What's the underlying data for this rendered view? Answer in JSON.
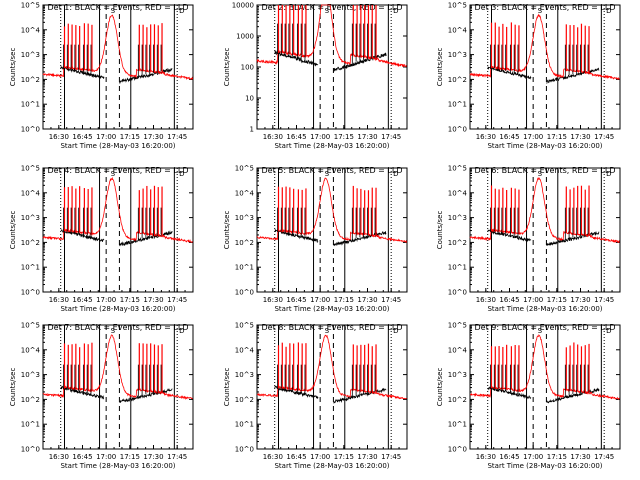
{
  "chart_data": [
    {
      "type": "line",
      "title": "Det 1: BLACK = Events, RED = LLD",
      "ylabel": "Counts/sec",
      "xlabel": "Start Time (28-May-03 16:20:00)",
      "x_ticks": [
        "16:30",
        "16:45",
        "17:00",
        "17:15",
        "17:30",
        "17:45"
      ],
      "y_ticks": [
        "10^0",
        "10^1",
        "10^2",
        "10^3",
        "10^4",
        "10^5"
      ],
      "ylim": [
        1,
        100000
      ],
      "markers": [
        "S",
        "D"
      ],
      "series": [
        {
          "name": "BLACK = Events",
          "color": "#000000"
        },
        {
          "name": "RED = LLD",
          "color": "#ff0000"
        }
      ]
    },
    {
      "type": "line",
      "title": "Det 2: BLACK = Events, RED = LLD",
      "ylabel": "Counts/sec",
      "xlabel": "Start Time (28-May-03 16:20:00)",
      "x_ticks": [
        "16:30",
        "16:45",
        "17:00",
        "17:15",
        "17:30",
        "17:45"
      ],
      "y_ticks": [
        "1",
        "10",
        "100",
        "1000",
        "10000"
      ],
      "ylim": [
        1,
        10000
      ],
      "markers": [
        "S",
        "D"
      ],
      "series": [
        {
          "name": "BLACK = Events",
          "color": "#000000"
        },
        {
          "name": "RED = LLD",
          "color": "#ff0000"
        }
      ]
    },
    {
      "type": "line",
      "title": "Det 3: BLACK = Events, RED = LLD",
      "ylabel": "Counts/sec",
      "xlabel": "Start Time (28-May-03 16:20:00)",
      "x_ticks": [
        "16:30",
        "16:45",
        "17:00",
        "17:15",
        "17:30",
        "17:45"
      ],
      "y_ticks": [
        "10^0",
        "10^1",
        "10^2",
        "10^3",
        "10^4",
        "10^5"
      ],
      "ylim": [
        1,
        100000
      ],
      "markers": [
        "S",
        "D"
      ],
      "series": [
        {
          "name": "BLACK = Events",
          "color": "#000000"
        },
        {
          "name": "RED = LLD",
          "color": "#ff0000"
        }
      ]
    },
    {
      "type": "line",
      "title": "Det 4: BLACK = Events, RED = LLD",
      "ylabel": "Counts/sec",
      "xlabel": "Start Time (28-May-03 16:20:00)",
      "x_ticks": [
        "16:30",
        "16:45",
        "17:00",
        "17:15",
        "17:30",
        "17:45"
      ],
      "y_ticks": [
        "10^0",
        "10^1",
        "10^2",
        "10^3",
        "10^4",
        "10^5"
      ],
      "ylim": [
        1,
        100000
      ],
      "markers": [
        "S",
        "D"
      ],
      "series": [
        {
          "name": "BLACK = Events",
          "color": "#000000"
        },
        {
          "name": "RED = LLD",
          "color": "#ff0000"
        }
      ]
    },
    {
      "type": "line",
      "title": "Det 5: BLACK = Events, RED = LLD",
      "ylabel": "Counts/sec",
      "xlabel": "Start Time (28-May-03 16:20:00)",
      "x_ticks": [
        "16:30",
        "16:45",
        "17:00",
        "17:15",
        "17:30",
        "17:45"
      ],
      "y_ticks": [
        "10^0",
        "10^1",
        "10^2",
        "10^3",
        "10^4",
        "10^5"
      ],
      "ylim": [
        1,
        100000
      ],
      "markers": [
        "S",
        "D"
      ],
      "series": [
        {
          "name": "BLACK = Events",
          "color": "#000000"
        },
        {
          "name": "RED = LLD",
          "color": "#ff0000"
        }
      ]
    },
    {
      "type": "line",
      "title": "Det 6: BLACK = Events, RED = LLD",
      "ylabel": "Counts/sec",
      "xlabel": "Start Time (28-May-03 16:20:00)",
      "x_ticks": [
        "16:30",
        "16:45",
        "17:00",
        "17:15",
        "17:30",
        "17:45"
      ],
      "y_ticks": [
        "10^0",
        "10^1",
        "10^2",
        "10^3",
        "10^4",
        "10^5"
      ],
      "ylim": [
        1,
        100000
      ],
      "markers": [
        "S",
        "D"
      ],
      "series": [
        {
          "name": "BLACK = Events",
          "color": "#000000"
        },
        {
          "name": "RED = LLD",
          "color": "#ff0000"
        }
      ]
    },
    {
      "type": "line",
      "title": "Det 7: BLACK = Events, RED = LLD",
      "ylabel": "Counts/sec",
      "xlabel": "Start Time (28-May-03 16:20:00)",
      "x_ticks": [
        "16:30",
        "16:45",
        "17:00",
        "17:15",
        "17:30",
        "17:45"
      ],
      "y_ticks": [
        "10^0",
        "10^1",
        "10^2",
        "10^3",
        "10^4",
        "10^5"
      ],
      "ylim": [
        1,
        100000
      ],
      "markers": [
        "S",
        "D"
      ],
      "series": [
        {
          "name": "BLACK = Events",
          "color": "#000000"
        },
        {
          "name": "RED = LLD",
          "color": "#ff0000"
        }
      ]
    },
    {
      "type": "line",
      "title": "Det 8: BLACK = Events, RED = LLD",
      "ylabel": "Counts/sec",
      "xlabel": "Start Time (28-May-03 16:20:00)",
      "x_ticks": [
        "16:30",
        "16:45",
        "17:00",
        "17:15",
        "17:30",
        "17:45"
      ],
      "y_ticks": [
        "10^0",
        "10^1",
        "10^2",
        "10^3",
        "10^4",
        "10^5"
      ],
      "ylim": [
        1,
        100000
      ],
      "markers": [
        "S",
        "D"
      ],
      "series": [
        {
          "name": "BLACK = Events",
          "color": "#000000"
        },
        {
          "name": "RED = LLD",
          "color": "#ff0000"
        }
      ]
    },
    {
      "type": "line",
      "title": "Det 9: BLACK = Events, RED = LLD",
      "ylabel": "Counts/sec",
      "xlabel": "Start Time (28-May-03 16:20:00)",
      "x_ticks": [
        "16:30",
        "16:45",
        "17:00",
        "17:15",
        "17:30",
        "17:45"
      ],
      "y_ticks": [
        "10^0",
        "10^1",
        "10^2",
        "10^3",
        "10^4",
        "10^5"
      ],
      "ylim": [
        1,
        100000
      ],
      "markers": [
        "S",
        "D"
      ],
      "series": [
        {
          "name": "BLACK = Events",
          "color": "#000000"
        },
        {
          "name": "RED = LLD",
          "color": "#ff0000"
        }
      ]
    }
  ]
}
